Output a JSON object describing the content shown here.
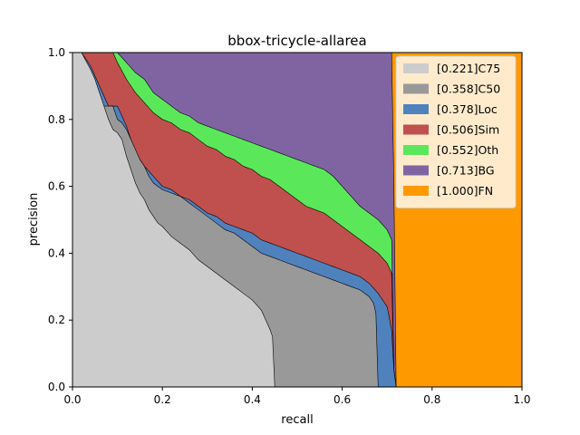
{
  "chart_data": {
    "type": "area",
    "title": "bbox-tricycle-allarea",
    "xlabel": "recall",
    "ylabel": "precision",
    "xlim": [
      0,
      1
    ],
    "ylim": [
      0,
      1
    ],
    "xticks": [
      "0.0",
      "0.2",
      "0.4",
      "0.6",
      "0.8",
      "1.0"
    ],
    "yticks": [
      "0.0",
      "0.2",
      "0.4",
      "0.6",
      "0.8",
      "1.0"
    ],
    "legend_position": "top-right",
    "series": [
      {
        "name": "[0.221]C75",
        "color": "#cccccc",
        "x": [
          0,
          0.02,
          0.04,
          0.05,
          0.06,
          0.07,
          0.08,
          0.09,
          0.1,
          0.11,
          0.12,
          0.13,
          0.14,
          0.15,
          0.16,
          0.17,
          0.18,
          0.19,
          0.2,
          0.22,
          0.24,
          0.26,
          0.28,
          0.3,
          0.32,
          0.34,
          0.36,
          0.38,
          0.4,
          0.42,
          0.44,
          0.445,
          0.45,
          0.46,
          0.5,
          1.0
        ],
        "y": [
          1.0,
          1.0,
          0.95,
          0.92,
          0.88,
          0.84,
          0.8,
          0.77,
          0.76,
          0.74,
          0.69,
          0.65,
          0.61,
          0.58,
          0.56,
          0.53,
          0.51,
          0.49,
          0.48,
          0.45,
          0.43,
          0.41,
          0.38,
          0.36,
          0.34,
          0.32,
          0.3,
          0.28,
          0.26,
          0.23,
          0.17,
          0.15,
          0.0,
          0.0,
          0.0,
          0.0
        ]
      },
      {
        "name": "[0.358]C50",
        "color": "#999999",
        "x": [
          0,
          0.01,
          0.02,
          0.03,
          0.05,
          0.06,
          0.08,
          0.09,
          0.1,
          0.11,
          0.12,
          0.13,
          0.14,
          0.15,
          0.16,
          0.17,
          0.18,
          0.19,
          0.2,
          0.22,
          0.24,
          0.26,
          0.28,
          0.3,
          0.32,
          0.34,
          0.36,
          0.38,
          0.4,
          0.42,
          0.44,
          0.46,
          0.48,
          0.5,
          0.52,
          0.54,
          0.56,
          0.58,
          0.6,
          0.62,
          0.64,
          0.66,
          0.67,
          0.675,
          0.68,
          0.69,
          0.7,
          1.0
        ],
        "y": [
          1.0,
          1.0,
          0.96,
          0.9,
          0.84,
          0.84,
          0.84,
          0.84,
          0.8,
          0.79,
          0.77,
          0.74,
          0.71,
          0.68,
          0.66,
          0.63,
          0.61,
          0.6,
          0.59,
          0.58,
          0.57,
          0.55,
          0.53,
          0.51,
          0.49,
          0.47,
          0.46,
          0.44,
          0.42,
          0.4,
          0.39,
          0.38,
          0.37,
          0.36,
          0.35,
          0.34,
          0.33,
          0.32,
          0.31,
          0.3,
          0.29,
          0.27,
          0.25,
          0.22,
          0.0,
          0.0,
          0.0,
          0.0
        ]
      },
      {
        "name": "[0.378]Loc",
        "color": "#4f81bd",
        "x": [
          0,
          0.02,
          0.04,
          0.06,
          0.08,
          0.1,
          0.12,
          0.14,
          0.16,
          0.18,
          0.2,
          0.22,
          0.24,
          0.26,
          0.28,
          0.3,
          0.32,
          0.34,
          0.36,
          0.38,
          0.4,
          0.42,
          0.44,
          0.46,
          0.48,
          0.5,
          0.52,
          0.54,
          0.56,
          0.58,
          0.6,
          0.62,
          0.64,
          0.66,
          0.68,
          0.7,
          0.71,
          0.715,
          0.72,
          1.0
        ],
        "y": [
          1.0,
          1.0,
          0.96,
          0.9,
          0.84,
          0.84,
          0.78,
          0.7,
          0.66,
          0.63,
          0.6,
          0.59,
          0.57,
          0.56,
          0.54,
          0.52,
          0.51,
          0.49,
          0.48,
          0.47,
          0.46,
          0.44,
          0.43,
          0.42,
          0.41,
          0.4,
          0.39,
          0.38,
          0.37,
          0.36,
          0.35,
          0.34,
          0.33,
          0.31,
          0.28,
          0.24,
          0.17,
          0.05,
          0.0,
          0.0
        ]
      },
      {
        "name": "[0.506]Sim",
        "color": "#c0504d",
        "x": [
          0,
          0.02,
          0.06,
          0.08,
          0.09,
          0.1,
          0.12,
          0.14,
          0.16,
          0.18,
          0.2,
          0.22,
          0.24,
          0.26,
          0.28,
          0.3,
          0.32,
          0.34,
          0.36,
          0.38,
          0.4,
          0.42,
          0.44,
          0.46,
          0.48,
          0.5,
          0.52,
          0.54,
          0.56,
          0.58,
          0.6,
          0.62,
          0.64,
          0.66,
          0.68,
          0.7,
          0.71,
          0.715,
          0.72,
          1.0
        ],
        "y": [
          1.0,
          1.0,
          1.0,
          1.0,
          1.0,
          0.97,
          0.92,
          0.88,
          0.85,
          0.82,
          0.8,
          0.79,
          0.77,
          0.76,
          0.74,
          0.72,
          0.71,
          0.69,
          0.68,
          0.66,
          0.65,
          0.63,
          0.62,
          0.6,
          0.58,
          0.56,
          0.54,
          0.53,
          0.52,
          0.5,
          0.48,
          0.46,
          0.44,
          0.42,
          0.4,
          0.37,
          0.34,
          0.05,
          0.0,
          0.0
        ]
      },
      {
        "name": "[0.552]Oth",
        "color": "#5ae85a",
        "x": [
          0,
          0.02,
          0.08,
          0.09,
          0.1,
          0.12,
          0.14,
          0.16,
          0.18,
          0.2,
          0.22,
          0.24,
          0.26,
          0.28,
          0.3,
          0.32,
          0.34,
          0.36,
          0.38,
          0.4,
          0.42,
          0.44,
          0.46,
          0.48,
          0.5,
          0.52,
          0.54,
          0.56,
          0.58,
          0.6,
          0.62,
          0.64,
          0.66,
          0.68,
          0.7,
          0.71,
          0.715,
          0.72,
          1.0
        ],
        "y": [
          1.0,
          1.0,
          1.0,
          1.0,
          1.0,
          0.97,
          0.94,
          0.92,
          0.88,
          0.86,
          0.84,
          0.82,
          0.81,
          0.79,
          0.78,
          0.77,
          0.76,
          0.75,
          0.74,
          0.73,
          0.72,
          0.71,
          0.7,
          0.69,
          0.68,
          0.67,
          0.66,
          0.65,
          0.63,
          0.6,
          0.57,
          0.54,
          0.52,
          0.5,
          0.47,
          0.44,
          0.05,
          0.0,
          0.0
        ]
      },
      {
        "name": "[0.713]BG",
        "color": "#8064a2",
        "x": [
          0,
          0.7,
          0.71,
          0.715,
          0.72,
          1.0
        ],
        "y": [
          1.0,
          1.0,
          1.0,
          0.6,
          0.0,
          0.0
        ]
      },
      {
        "name": "[1.000]FN",
        "color": "#ff9900",
        "x": [
          0,
          1.0
        ],
        "y": [
          1.0,
          1.0
        ]
      }
    ]
  }
}
